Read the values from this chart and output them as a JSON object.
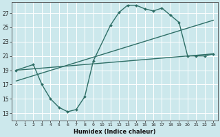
{
  "xlabel": "Humidex (Indice chaleur)",
  "background_color": "#cce8ec",
  "grid_color": "#ffffff",
  "line_color": "#2e6e66",
  "xlim": [
    -0.5,
    23.5
  ],
  "ylim": [
    12.0,
    28.5
  ],
  "xticks": [
    0,
    1,
    2,
    3,
    4,
    5,
    6,
    7,
    8,
    9,
    10,
    11,
    12,
    13,
    14,
    15,
    16,
    17,
    18,
    19,
    20,
    21,
    22,
    23
  ],
  "yticks": [
    13,
    15,
    17,
    19,
    21,
    23,
    25,
    27
  ],
  "series1_x": [
    0,
    2,
    3,
    4,
    5,
    6,
    7,
    8,
    9,
    11,
    12,
    13,
    14,
    15,
    16,
    17,
    18,
    19,
    20,
    21,
    22,
    23
  ],
  "series1_y": [
    19.0,
    19.8,
    17.0,
    15.0,
    13.8,
    13.2,
    13.5,
    15.3,
    20.3,
    25.3,
    27.1,
    28.1,
    28.1,
    27.6,
    27.3,
    27.7,
    26.7,
    25.7,
    21.0,
    21.0,
    21.0,
    21.3
  ],
  "series2_x": [
    0,
    23
  ],
  "series2_y": [
    19.0,
    21.3
  ],
  "series3_x": [
    0,
    23
  ],
  "series3_y": [
    17.5,
    26.0
  ],
  "marker": "D",
  "markersize": 2.0,
  "linewidth": 1.0
}
